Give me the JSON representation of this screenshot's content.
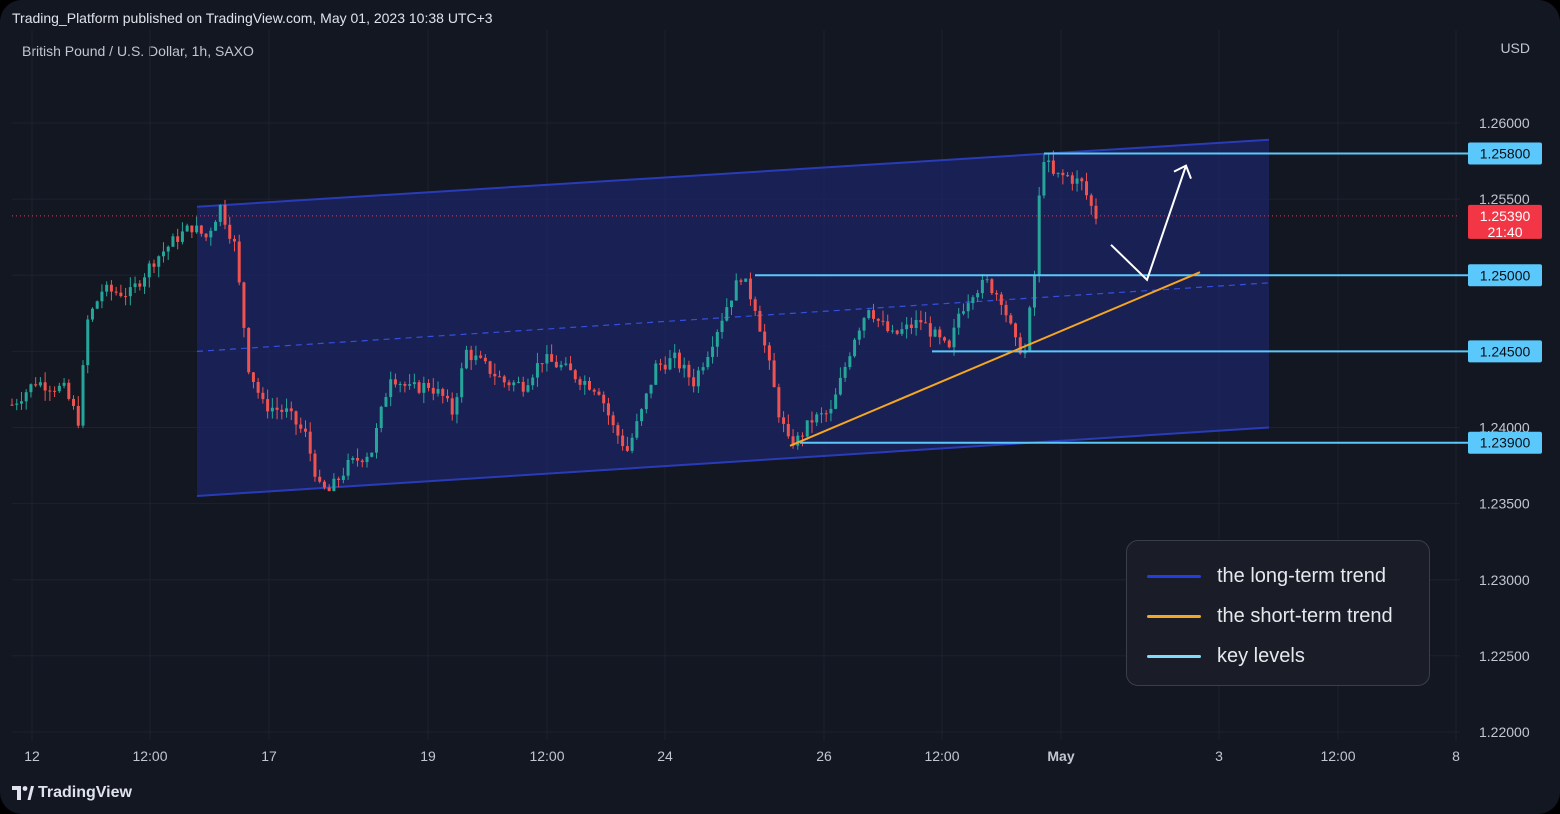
{
  "header": {
    "published": "Trading_Platform published on TradingView.com, May 01, 2023 10:38 UTC+3",
    "symbol": "British Pound / U.S. Dollar, 1h, SAXO",
    "currency": "USD"
  },
  "footer": {
    "brand": "TradingView",
    "logo_icon": "tradingview-logo-icon"
  },
  "chart_data": {
    "type": "candlestick",
    "symbol": "GBPUSD",
    "timeframe": "1h",
    "x_ticks": [
      "12",
      "12:00",
      "17",
      "19",
      "12:00",
      "24",
      "26",
      "12:00",
      "May",
      "3",
      "12:00",
      "8"
    ],
    "y_ticks": [
      "1.26000",
      "1.25500",
      "1.25000",
      "1.24500",
      "1.24000",
      "1.23500",
      "1.23000",
      "1.22500",
      "1.22000"
    ],
    "ylim": [
      1.2195,
      1.2635
    ],
    "price_path": [
      {
        "t": 0,
        "p": 1.2415
      },
      {
        "t": 5,
        "p": 1.243
      },
      {
        "t": 11,
        "p": 1.2425
      },
      {
        "t": 14,
        "p": 1.2405
      },
      {
        "t": 16,
        "p": 1.247
      },
      {
        "t": 19,
        "p": 1.249
      },
      {
        "t": 25,
        "p": 1.2488
      },
      {
        "t": 30,
        "p": 1.251
      },
      {
        "t": 35,
        "p": 1.2525
      },
      {
        "t": 38,
        "p": 1.2532
      },
      {
        "t": 41,
        "p": 1.2525
      },
      {
        "t": 44,
        "p": 1.2545
      },
      {
        "t": 47,
        "p": 1.252
      },
      {
        "t": 50,
        "p": 1.244
      },
      {
        "t": 53,
        "p": 1.2415
      },
      {
        "t": 58,
        "p": 1.241
      },
      {
        "t": 62,
        "p": 1.2395
      },
      {
        "t": 65,
        "p": 1.236
      },
      {
        "t": 67,
        "p": 1.2358
      },
      {
        "t": 71,
        "p": 1.2375
      },
      {
        "t": 76,
        "p": 1.2385
      },
      {
        "t": 80,
        "p": 1.2435
      },
      {
        "t": 84,
        "p": 1.2425
      },
      {
        "t": 88,
        "p": 1.2428
      },
      {
        "t": 91,
        "p": 1.242
      },
      {
        "t": 93,
        "p": 1.241
      },
      {
        "t": 96,
        "p": 1.245
      },
      {
        "t": 100,
        "p": 1.244
      },
      {
        "t": 104,
        "p": 1.243
      },
      {
        "t": 108,
        "p": 1.2428
      },
      {
        "t": 112,
        "p": 1.2445
      },
      {
        "t": 116,
        "p": 1.244
      },
      {
        "t": 120,
        "p": 1.2432
      },
      {
        "t": 124,
        "p": 1.2425
      },
      {
        "t": 127,
        "p": 1.24
      },
      {
        "t": 130,
        "p": 1.2385
      },
      {
        "t": 133,
        "p": 1.241
      },
      {
        "t": 136,
        "p": 1.244
      },
      {
        "t": 140,
        "p": 1.2445
      },
      {
        "t": 144,
        "p": 1.243
      },
      {
        "t": 147,
        "p": 1.245
      },
      {
        "t": 151,
        "p": 1.248
      },
      {
        "t": 154,
        "p": 1.25
      },
      {
        "t": 157,
        "p": 1.248
      },
      {
        "t": 160,
        "p": 1.244
      },
      {
        "t": 162,
        "p": 1.241
      },
      {
        "t": 164,
        "p": 1.239
      },
      {
        "t": 166,
        "p": 1.2392
      },
      {
        "t": 169,
        "p": 1.2405
      },
      {
        "t": 173,
        "p": 1.241
      },
      {
        "t": 176,
        "p": 1.244
      },
      {
        "t": 178,
        "p": 1.246
      },
      {
        "t": 181,
        "p": 1.248
      },
      {
        "t": 183,
        "p": 1.247
      },
      {
        "t": 186,
        "p": 1.246
      },
      {
        "t": 189,
        "p": 1.2465
      },
      {
        "t": 192,
        "p": 1.247
      },
      {
        "t": 195,
        "p": 1.246
      },
      {
        "t": 198,
        "p": 1.245
      },
      {
        "t": 200,
        "p": 1.2475
      },
      {
        "t": 203,
        "p": 1.249
      },
      {
        "t": 206,
        "p": 1.2495
      },
      {
        "t": 209,
        "p": 1.2485
      },
      {
        "t": 212,
        "p": 1.2455
      },
      {
        "t": 214,
        "p": 1.245
      },
      {
        "t": 216,
        "p": 1.25
      },
      {
        "t": 217,
        "p": 1.255
      },
      {
        "t": 218,
        "p": 1.2578
      },
      {
        "t": 220,
        "p": 1.2565
      },
      {
        "t": 223,
        "p": 1.2565
      },
      {
        "t": 226,
        "p": 1.256
      },
      {
        "t": 228,
        "p": 1.2545
      },
      {
        "t": 229,
        "p": 1.2539
      }
    ],
    "annotations": {
      "channel": {
        "upper": [
          1.2545,
          1.2589
        ],
        "lower": [
          1.2355,
          1.24
        ],
        "mid": [
          1.245,
          1.2495
        ]
      },
      "trendline": [
        1.2388,
        1.2502
      ],
      "key_levels": [
        "1.25800",
        "1.25000",
        "1.24500",
        "1.23900"
      ],
      "current_price": {
        "label": "1.25390",
        "countdown": "21:40",
        "value": 1.2539
      },
      "projection": [
        1.252,
        1.2497,
        1.2572
      ]
    },
    "colors": {
      "up": "#26a69a",
      "down": "#ef5350",
      "channel": "#2a3bb8",
      "channel_fill": "#1b2466",
      "trendline": "#f5a623",
      "key_level": "#5ac8fa",
      "price_badge": "#f23645",
      "background": "#131722"
    },
    "legend": [
      {
        "label": "the long-term trend",
        "color": "#1f3fe0"
      },
      {
        "label": "the short-term trend",
        "color": "#f5a623"
      },
      {
        "label": "key levels",
        "color": "#7fdcff"
      }
    ]
  }
}
